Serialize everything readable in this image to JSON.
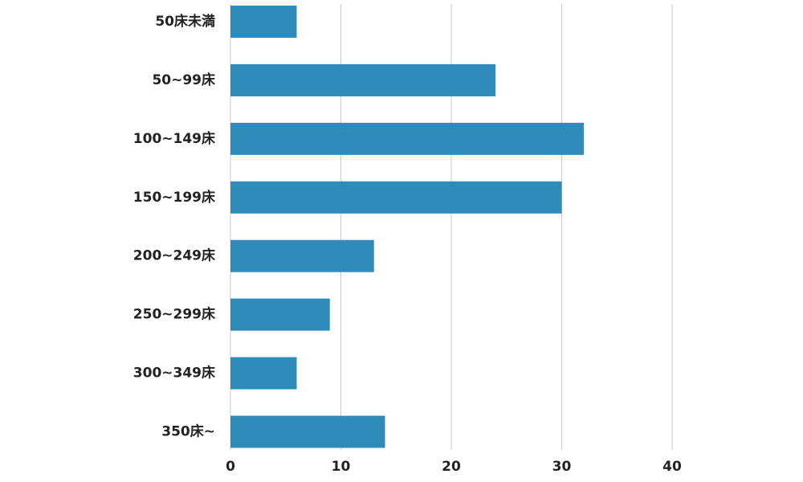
{
  "chart_data": {
    "type": "barh",
    "categories": [
      "50床未満",
      "50~99床",
      "100~149床",
      "150~199床",
      "200~249床",
      "250~299床",
      "300~349床",
      "350床~"
    ],
    "values": [
      6,
      24,
      32,
      30,
      13,
      9,
      6,
      14
    ],
    "color": "#2e8bba",
    "xlim": [
      0,
      40
    ],
    "xticks": [
      0,
      10,
      20,
      30,
      40
    ],
    "grid": true
  }
}
